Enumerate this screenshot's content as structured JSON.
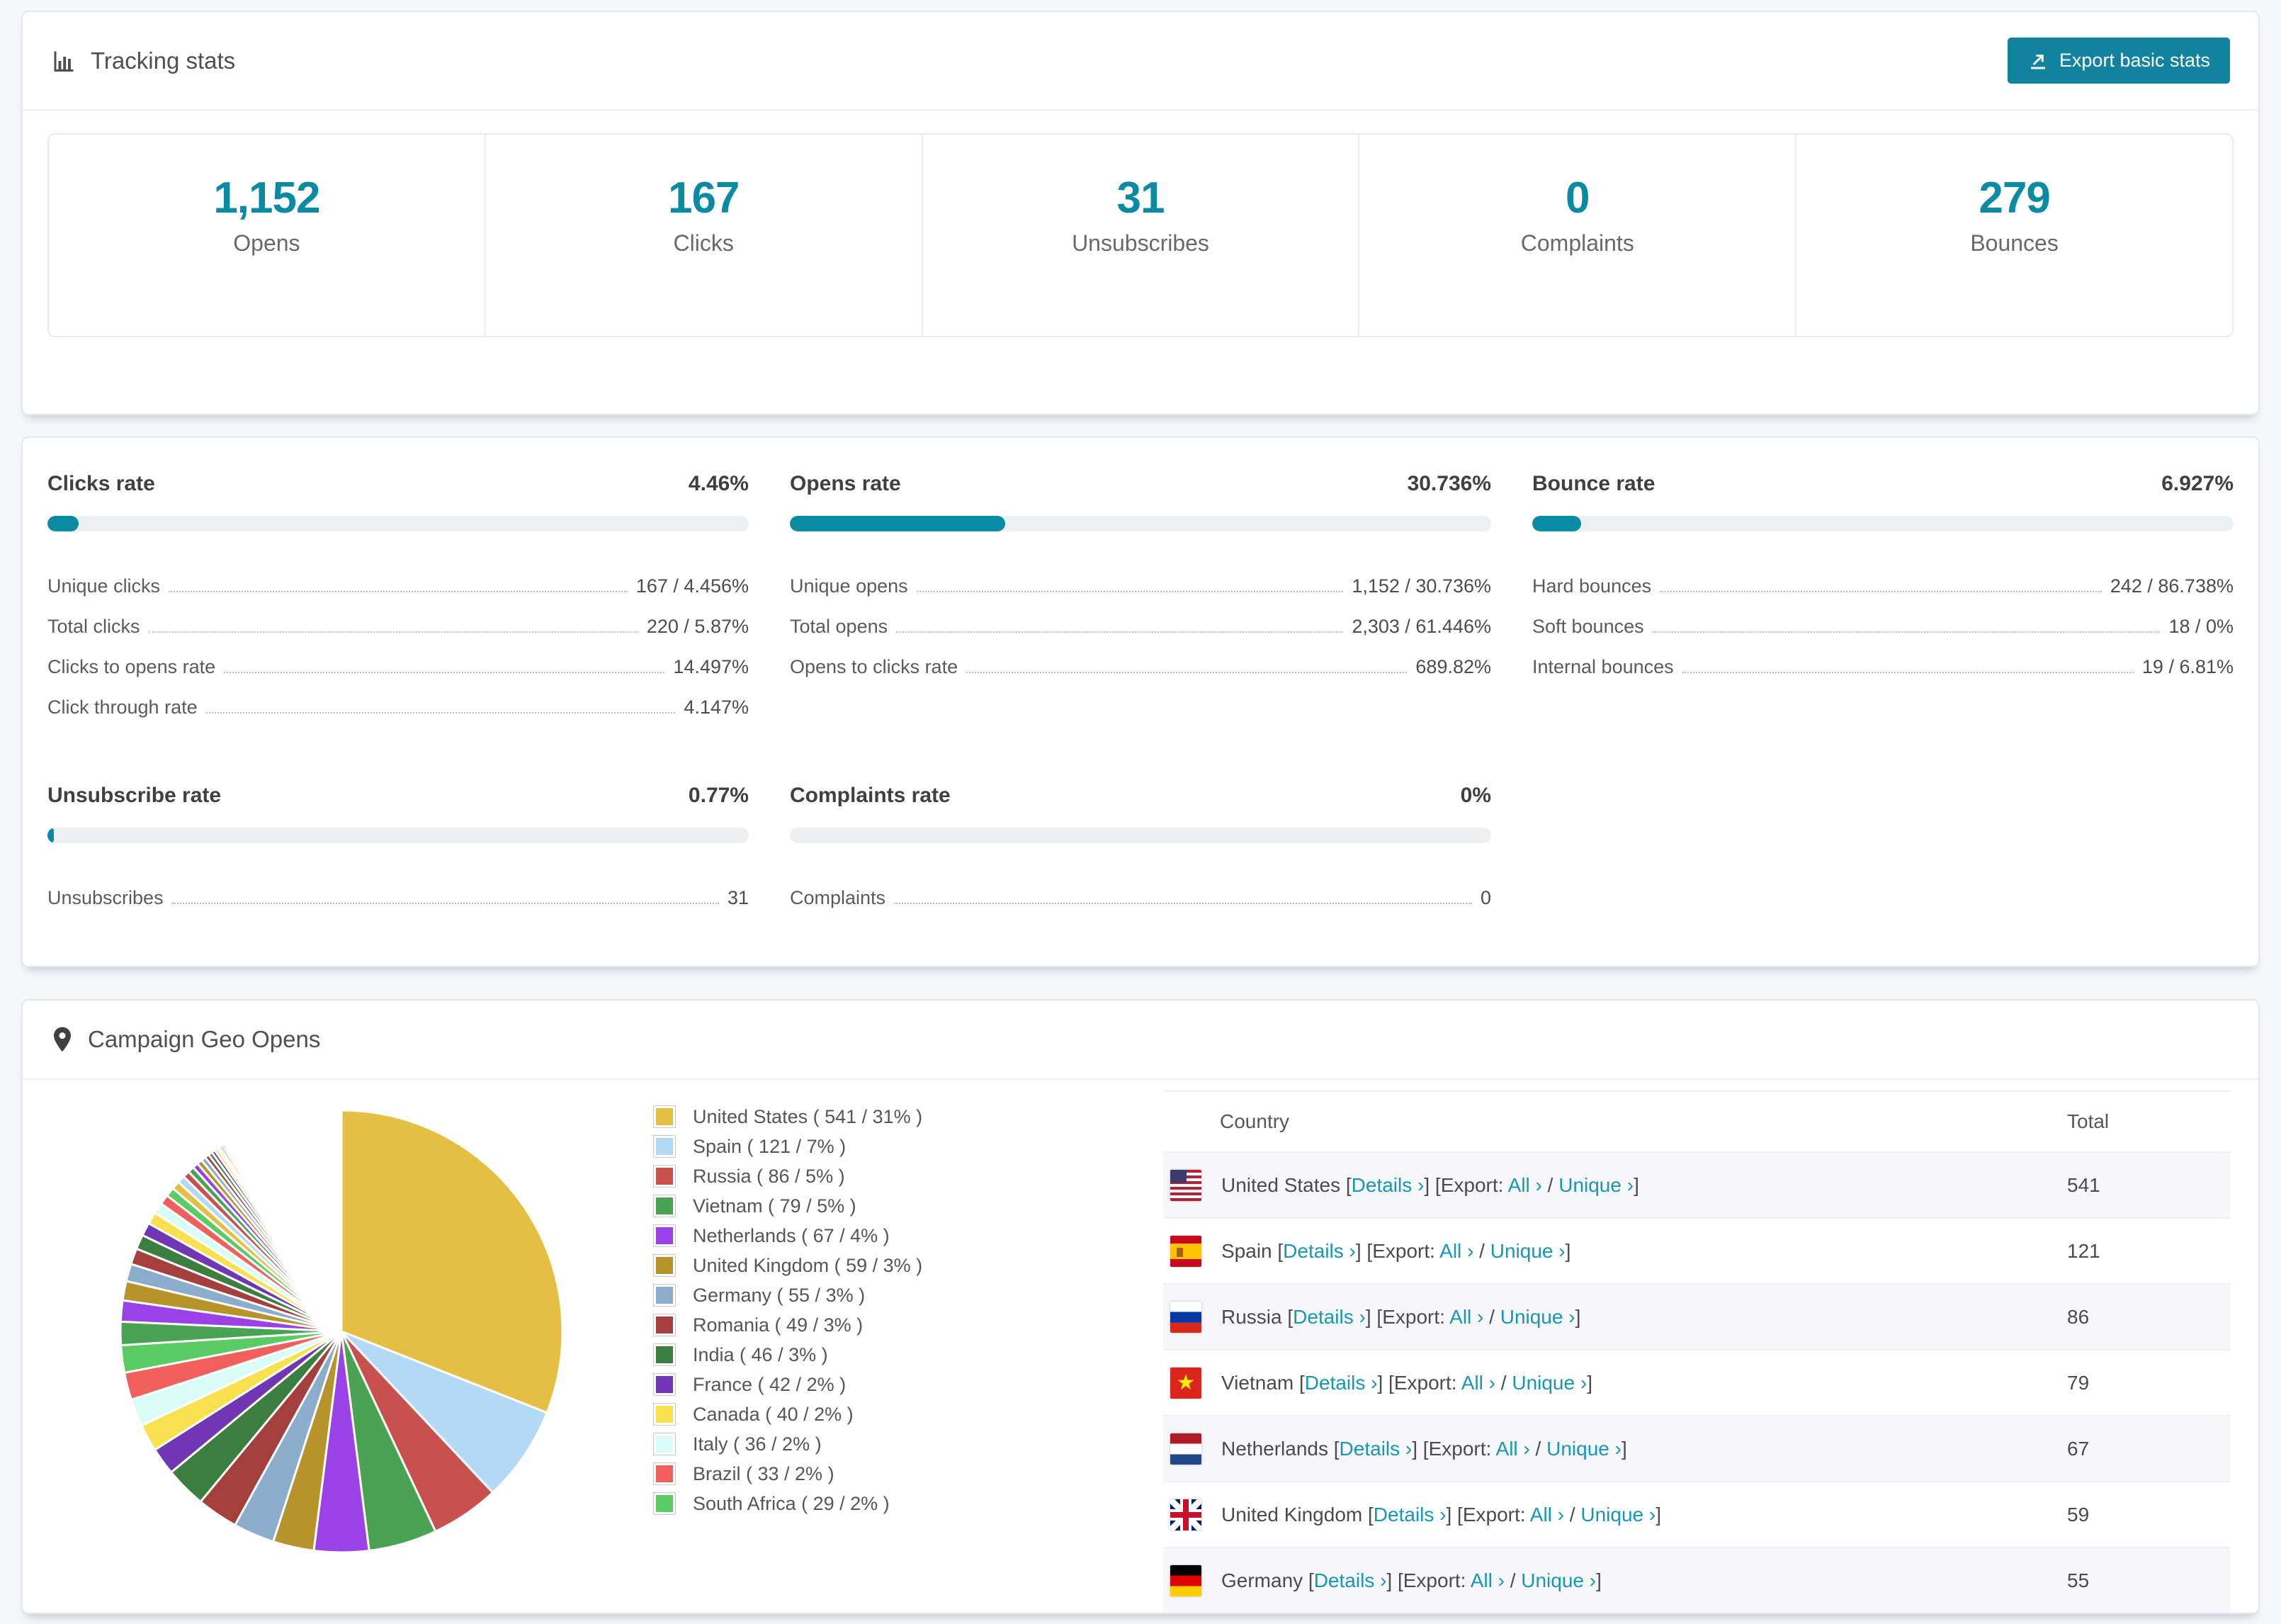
{
  "colors": {
    "accent": "#0b8ba3",
    "link": "#1697b6",
    "button": "#12839e",
    "bar_track": "#edeff3"
  },
  "tracking": {
    "title": "Tracking stats",
    "export_button": "Export basic stats",
    "stats": [
      {
        "value": "1,152",
        "label": "Opens"
      },
      {
        "value": "167",
        "label": "Clicks"
      },
      {
        "value": "31",
        "label": "Unsubscribes"
      },
      {
        "value": "0",
        "label": "Complaints"
      },
      {
        "value": "279",
        "label": "Bounces"
      }
    ]
  },
  "rates": {
    "sections": [
      {
        "title": "Clicks rate",
        "value": "4.46%",
        "percent": 4.46,
        "rows": [
          {
            "label": "Unique clicks",
            "value": "167 / 4.456%"
          },
          {
            "label": "Total clicks",
            "value": "220 / 5.87%"
          },
          {
            "label": "Clicks to opens rate",
            "value": "14.497%"
          },
          {
            "label": "Click through rate",
            "value": "4.147%"
          }
        ]
      },
      {
        "title": "Opens rate",
        "value": "30.736%",
        "percent": 30.736,
        "rows": [
          {
            "label": "Unique opens",
            "value": "1,152 / 30.736%"
          },
          {
            "label": "Total opens",
            "value": "2,303 / 61.446%"
          },
          {
            "label": "Opens to clicks rate",
            "value": "689.82%"
          }
        ]
      },
      {
        "title": "Bounce rate",
        "value": "6.927%",
        "percent": 6.927,
        "rows": [
          {
            "label": "Hard bounces",
            "value": "242 / 86.738%"
          },
          {
            "label": "Soft bounces",
            "value": "18 / 0%"
          },
          {
            "label": "Internal bounces",
            "value": "19 / 6.81%"
          }
        ]
      },
      {
        "title": "Unsubscribe rate",
        "value": "0.77%",
        "percent": 0.77,
        "rows": [
          {
            "label": "Unsubscribes",
            "value": "31"
          }
        ]
      },
      {
        "title": "Complaints rate",
        "value": "0%",
        "percent": 0,
        "rows": [
          {
            "label": "Complaints",
            "value": "0"
          }
        ]
      }
    ]
  },
  "geo": {
    "title": "Campaign Geo Opens",
    "table": {
      "headers": {
        "country": "Country",
        "total": "Total"
      },
      "links": {
        "details": "Details ›",
        "export_label": "Export:",
        "all": "All ›",
        "unique": "Unique ›"
      },
      "rows": [
        {
          "country": "United States",
          "flag": "us",
          "total": "541"
        },
        {
          "country": "Spain",
          "flag": "es",
          "total": "121"
        },
        {
          "country": "Russia",
          "flag": "ru",
          "total": "86"
        },
        {
          "country": "Vietnam",
          "flag": "vn",
          "total": "79"
        },
        {
          "country": "Netherlands",
          "flag": "nl",
          "total": "67"
        },
        {
          "country": "United Kingdom",
          "flag": "gb",
          "total": "59"
        },
        {
          "country": "Germany",
          "flag": "de",
          "total": "55"
        }
      ]
    }
  },
  "chart_data": {
    "type": "pie",
    "title": "Campaign Geo Opens",
    "legend_position": "right",
    "series": [
      {
        "name": "United States",
        "value": 541,
        "percent": 31,
        "color": "#e5bf44"
      },
      {
        "name": "Spain",
        "value": 121,
        "percent": 7,
        "color": "#b3d9f5"
      },
      {
        "name": "Russia",
        "value": 86,
        "percent": 5,
        "color": "#c8504f"
      },
      {
        "name": "Vietnam",
        "value": 79,
        "percent": 5,
        "color": "#4aa352"
      },
      {
        "name": "Netherlands",
        "value": 67,
        "percent": 4,
        "color": "#9a41e8"
      },
      {
        "name": "United Kingdom",
        "value": 59,
        "percent": 3,
        "color": "#b7932b"
      },
      {
        "name": "Germany",
        "value": 55,
        "percent": 3,
        "color": "#8caccc"
      },
      {
        "name": "Romania",
        "value": 49,
        "percent": 3,
        "color": "#a43f3e"
      },
      {
        "name": "India",
        "value": 46,
        "percent": 3,
        "color": "#3c7d40"
      },
      {
        "name": "France",
        "value": 42,
        "percent": 2,
        "color": "#7136b3"
      },
      {
        "name": "Canada",
        "value": 40,
        "percent": 2,
        "color": "#f9e04e"
      },
      {
        "name": "Italy",
        "value": 36,
        "percent": 2,
        "color": "#d9fdf6"
      },
      {
        "name": "Brazil",
        "value": 33,
        "percent": 2,
        "color": "#f2605e"
      },
      {
        "name": "South Africa",
        "value": 29,
        "percent": 2,
        "color": "#5bcb63"
      }
    ],
    "others_percent": 26,
    "legend_label_format": "{name} ( {value} / {percent}% )"
  }
}
